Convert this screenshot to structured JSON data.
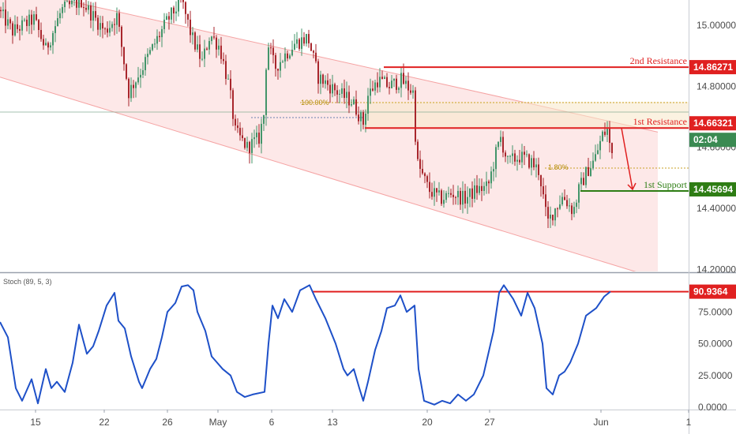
{
  "chart_data": [
    {
      "type": "candlestick",
      "price_axis": {
        "ticks": [
          "15.00000",
          "14.80000",
          "14.60000",
          "14.40000",
          "14.20000"
        ],
        "tick_values": [
          15.0,
          14.8,
          14.6,
          14.4,
          14.2
        ]
      },
      "x_axis": {
        "ticks": [
          "15",
          "22",
          "26",
          "May",
          "6",
          "13",
          "20",
          "27",
          "Jun",
          "1"
        ]
      },
      "levels": [
        {
          "name": "2nd Resistance",
          "value": 14.86271,
          "label": "14.86271",
          "color": "#e02020"
        },
        {
          "name": "1st Resistance",
          "value": 14.66321,
          "label": "14.66321",
          "color": "#e02020"
        },
        {
          "name": "1st Support",
          "value": 14.45694,
          "label": "14.45694",
          "color": "#2e7d14"
        }
      ],
      "current_price": {
        "value": 14.645,
        "timer": "02:04",
        "color": "#3a8a52"
      },
      "fib_labels": [
        "100.00%",
        "1.80%"
      ],
      "channel": {
        "upper_start": 15.13,
        "upper_end": 14.65,
        "lower_start": 14.83,
        "lower_end": 14.17,
        "fill": "#fde8e8",
        "line": "#f5a3a3"
      },
      "candle_colors": {
        "up": "#43956a",
        "down": "#a8262c"
      },
      "anchors": [
        [
          0,
          15.05
        ],
        [
          18,
          14.98
        ],
        [
          45,
          15.02
        ],
        [
          60,
          14.92
        ],
        [
          80,
          15.05
        ],
        [
          105,
          15.08
        ],
        [
          135,
          14.98
        ],
        [
          150,
          15.03
        ],
        [
          165,
          14.78
        ],
        [
          180,
          14.85
        ],
        [
          200,
          14.95
        ],
        [
          215,
          15.02
        ],
        [
          232,
          15.08
        ],
        [
          245,
          14.96
        ],
        [
          258,
          14.88
        ],
        [
          268,
          14.97
        ],
        [
          280,
          14.93
        ],
        [
          292,
          14.8
        ],
        [
          300,
          14.65
        ],
        [
          315,
          14.6
        ],
        [
          330,
          14.63
        ],
        [
          337,
          14.72
        ],
        [
          340,
          14.95
        ],
        [
          350,
          14.86
        ],
        [
          362,
          14.9
        ],
        [
          375,
          14.94
        ],
        [
          392,
          14.96
        ],
        [
          405,
          14.83
        ],
        [
          420,
          14.8
        ],
        [
          435,
          14.77
        ],
        [
          448,
          14.75
        ],
        [
          462,
          14.68
        ],
        [
          468,
          14.77
        ],
        [
          480,
          14.82
        ],
        [
          495,
          14.8
        ],
        [
          510,
          14.82
        ],
        [
          525,
          14.78
        ],
        [
          530,
          14.55
        ],
        [
          545,
          14.46
        ],
        [
          560,
          14.43
        ],
        [
          575,
          14.45
        ],
        [
          590,
          14.43
        ],
        [
          605,
          14.46
        ],
        [
          620,
          14.47
        ],
        [
          630,
          14.58
        ],
        [
          636,
          14.63
        ],
        [
          645,
          14.55
        ],
        [
          660,
          14.57
        ],
        [
          675,
          14.55
        ],
        [
          685,
          14.52
        ],
        [
          695,
          14.35
        ],
        [
          705,
          14.4
        ],
        [
          715,
          14.44
        ],
        [
          728,
          14.39
        ],
        [
          735,
          14.46
        ],
        [
          745,
          14.52
        ],
        [
          755,
          14.56
        ],
        [
          765,
          14.64
        ],
        [
          772,
          14.66
        ],
        [
          775,
          14.58
        ]
      ],
      "stochastic": {
        "label": "Stoch (89, 5, 3)",
        "color": "#1e50c8",
        "ticks": [
          "75.0000",
          "50.0000",
          "25.0000",
          "0.0000"
        ],
        "tick_values": [
          75,
          50,
          25,
          0
        ],
        "current": {
          "value": 90.9364,
          "label": "90.9364",
          "color": "#e02020"
        },
        "anchors": [
          [
            0,
            67
          ],
          [
            10,
            55
          ],
          [
            20,
            15
          ],
          [
            28,
            5
          ],
          [
            40,
            22
          ],
          [
            48,
            3
          ],
          [
            58,
            30
          ],
          [
            65,
            15
          ],
          [
            72,
            20
          ],
          [
            82,
            12
          ],
          [
            92,
            35
          ],
          [
            100,
            65
          ],
          [
            110,
            42
          ],
          [
            118,
            48
          ],
          [
            125,
            60
          ],
          [
            135,
            80
          ],
          [
            145,
            90
          ],
          [
            150,
            68
          ],
          [
            158,
            62
          ],
          [
            166,
            40
          ],
          [
            176,
            20
          ],
          [
            180,
            15
          ],
          [
            190,
            30
          ],
          [
            198,
            38
          ],
          [
            205,
            55
          ],
          [
            212,
            75
          ],
          [
            222,
            82
          ],
          [
            230,
            95
          ],
          [
            238,
            96
          ],
          [
            245,
            92
          ],
          [
            250,
            75
          ],
          [
            260,
            60
          ],
          [
            268,
            40
          ],
          [
            275,
            35
          ],
          [
            282,
            30
          ],
          [
            292,
            25
          ],
          [
            300,
            12
          ],
          [
            310,
            8
          ],
          [
            320,
            10
          ],
          [
            335,
            12
          ],
          [
            340,
            50
          ],
          [
            345,
            80
          ],
          [
            352,
            70
          ],
          [
            360,
            85
          ],
          [
            370,
            75
          ],
          [
            380,
            92
          ],
          [
            392,
            96
          ],
          [
            400,
            85
          ],
          [
            412,
            70
          ],
          [
            425,
            50
          ],
          [
            435,
            30
          ],
          [
            440,
            25
          ],
          [
            448,
            30
          ],
          [
            455,
            15
          ],
          [
            460,
            5
          ],
          [
            466,
            20
          ],
          [
            475,
            45
          ],
          [
            483,
            60
          ],
          [
            490,
            78
          ],
          [
            500,
            80
          ],
          [
            507,
            88
          ],
          [
            515,
            75
          ],
          [
            525,
            80
          ],
          [
            530,
            30
          ],
          [
            537,
            5
          ],
          [
            550,
            2
          ],
          [
            560,
            5
          ],
          [
            570,
            3
          ],
          [
            580,
            10
          ],
          [
            590,
            5
          ],
          [
            600,
            10
          ],
          [
            612,
            25
          ],
          [
            625,
            60
          ],
          [
            632,
            90
          ],
          [
            638,
            96
          ],
          [
            650,
            85
          ],
          [
            660,
            72
          ],
          [
            668,
            90
          ],
          [
            677,
            78
          ],
          [
            687,
            50
          ],
          [
            692,
            15
          ],
          [
            700,
            10
          ],
          [
            708,
            25
          ],
          [
            715,
            28
          ],
          [
            722,
            35
          ],
          [
            732,
            50
          ],
          [
            742,
            72
          ],
          [
            755,
            78
          ],
          [
            765,
            87
          ],
          [
            773,
            91
          ]
        ]
      }
    }
  ]
}
